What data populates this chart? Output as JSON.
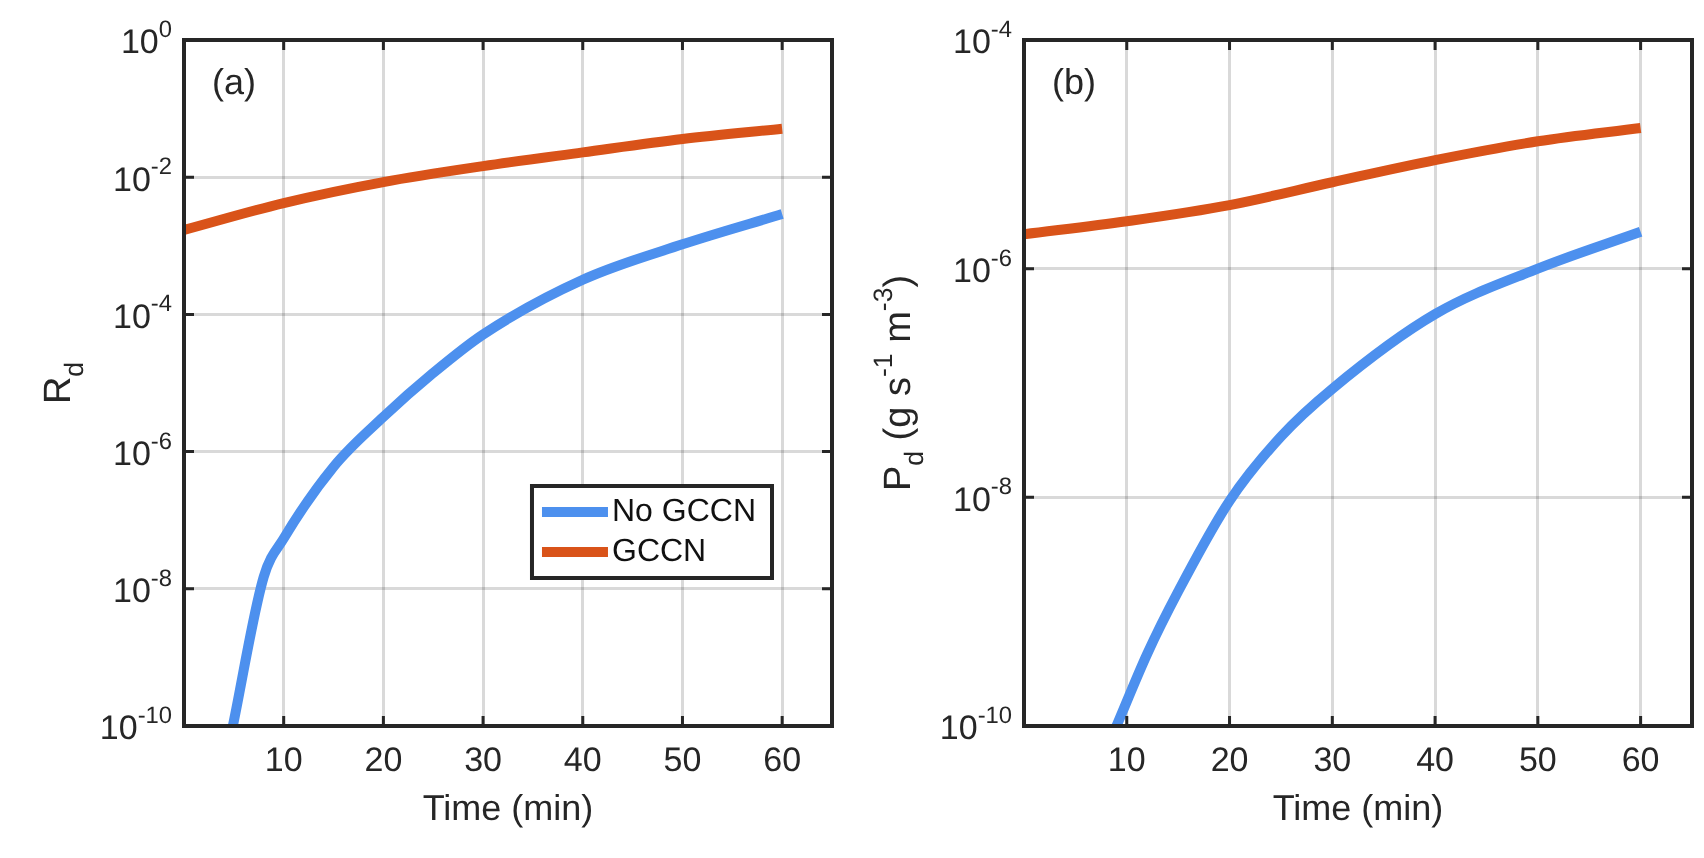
{
  "chart_data": [
    {
      "type": "line",
      "annotations": [
        "(a)"
      ],
      "xlabel": "Time (min)",
      "ylabel": "R$_{d}$",
      "xlim": [
        0,
        65
      ],
      "xticks": [
        10,
        20,
        30,
        40,
        50,
        60
      ],
      "ylim": [
        1e-10,
        1
      ],
      "yticks": [
        {
          "value": 1e-10,
          "label": "10$^{-10}$"
        },
        {
          "value": 1e-08,
          "label": "10$^{-8}$"
        },
        {
          "value": 1e-06,
          "label": "10$^{-6}$"
        },
        {
          "value": 0.0001,
          "label": "10$^{-4}$"
        },
        {
          "value": 0.01,
          "label": "10$^{-2}$"
        },
        {
          "value": 1,
          "label": "10$^{0}$"
        }
      ],
      "log": "y",
      "grid": true,
      "legend": "lower right",
      "line_style": "solid",
      "marker": "none",
      "series": [
        {
          "name": "No GCCN",
          "color": "#4d90ee",
          "x": [
            4.9,
            8,
            10,
            15,
            20,
            25,
            30,
            40,
            50,
            60
          ],
          "values": [
            1e-10,
            1.5e-08,
            5.4e-08,
            6e-07,
            3.2e-06,
            1.4e-05,
            5.1e-05,
            0.00032,
            0.00105,
            0.0029
          ]
        },
        {
          "name": "GCCN",
          "color": "#d95319",
          "x": [
            0,
            10,
            20,
            30,
            40,
            50,
            60
          ],
          "values": [
            0.0017,
            0.0042,
            0.0085,
            0.0145,
            0.023,
            0.036,
            0.051
          ]
        }
      ]
    },
    {
      "type": "line",
      "annotations": [
        "(b)"
      ],
      "xlabel": "Time (min)",
      "ylabel": "P$_{d}$ (g s$^{-1}$ m$^{-3}$)",
      "xlim": [
        0,
        65
      ],
      "xticks": [
        10,
        20,
        30,
        40,
        50,
        60
      ],
      "ylim": [
        1e-10,
        0.0001
      ],
      "yticks": [
        {
          "value": 1e-10,
          "label": "10$^{-10}$"
        },
        {
          "value": 1e-08,
          "label": "10$^{-8}$"
        },
        {
          "value": 1e-06,
          "label": "10$^{-6}$"
        },
        {
          "value": 0.0001,
          "label": "10$^{-4}$"
        }
      ],
      "log": "y",
      "grid": true,
      "line_style": "solid",
      "marker": "none",
      "series": [
        {
          "color": "#4d90ee",
          "x": [
            9,
            12,
            15,
            20,
            25,
            30,
            40,
            50,
            60
          ],
          "values": [
            1e-10,
            4.3e-10,
            1.5e-09,
            9.3e-09,
            3.4e-08,
            8.9e-08,
            4e-07,
            1e-06,
            2.1e-06
          ]
        },
        {
          "color": "#d95319",
          "x": [
            0,
            10,
            20,
            30,
            40,
            50,
            60
          ],
          "values": [
            2e-06,
            2.6e-06,
            3.6e-06,
            5.7e-06,
            8.9e-06,
            1.3e-05,
            1.7e-05
          ]
        }
      ]
    }
  ]
}
